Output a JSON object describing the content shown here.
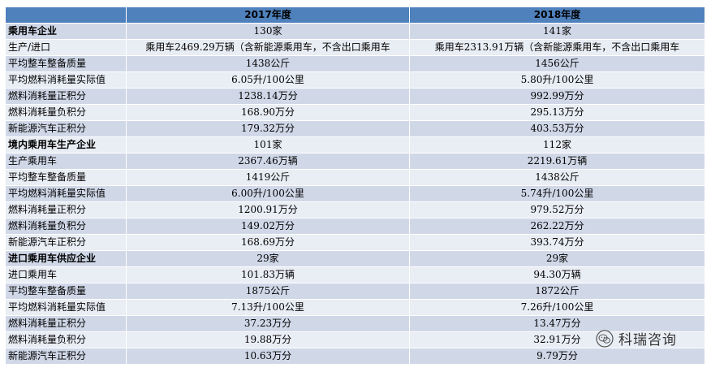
{
  "table": {
    "headers": [
      "",
      "2017年度",
      "2018年度"
    ],
    "rows": [
      {
        "label": "乘用车企业",
        "bold": true,
        "v2017": "130家",
        "v2018": "141家"
      },
      {
        "label": "生产/进口",
        "bold": false,
        "v2017": "乘用车2469.29万辆（含新能源乘用车，不含出口乘用车",
        "v2018": "乘用车2313.91万辆（含新能源乘用车，不含出口乘用车"
      },
      {
        "label": "平均整车整备质量",
        "bold": false,
        "v2017": "1438公斤",
        "v2018": "1456公斤"
      },
      {
        "label": "平均燃料消耗量实际值",
        "bold": false,
        "v2017": "6.05升/100公里",
        "v2018": "5.80升/100公里"
      },
      {
        "label": "燃料消耗量正积分",
        "bold": false,
        "v2017": "1238.14万分",
        "v2018": "992.99万分"
      },
      {
        "label": "燃料消耗量负积分",
        "bold": false,
        "v2017": "168.90万分",
        "v2018": "295.13万分"
      },
      {
        "label": "新能源汽车正积分",
        "bold": false,
        "v2017": "179.32万分",
        "v2018": "403.53万分"
      },
      {
        "label": "境内乘用车生产企业",
        "bold": true,
        "v2017": "101家",
        "v2018": "112家"
      },
      {
        "label": "生产乘用车",
        "bold": false,
        "v2017": "2367.46万辆",
        "v2018": "2219.61万辆"
      },
      {
        "label": "平均整车整备质量",
        "bold": false,
        "v2017": "1419公斤",
        "v2018": "1438公斤"
      },
      {
        "label": "平均燃料消耗量实际值",
        "bold": false,
        "v2017": "6.00升/100公里",
        "v2018": "5.74升/100公里"
      },
      {
        "label": "燃料消耗量正积分",
        "bold": false,
        "v2017": "1200.91万分",
        "v2018": "979.52万分"
      },
      {
        "label": "燃料消耗量负积分",
        "bold": false,
        "v2017": "149.02万分",
        "v2018": "262.22万分"
      },
      {
        "label": "新能源汽车正积分",
        "bold": false,
        "v2017": "168.69万分",
        "v2018": "393.74万分"
      },
      {
        "label": "进口乘用车供应企业",
        "bold": true,
        "v2017": "29家",
        "v2018": "29家"
      },
      {
        "label": "进口乘用车",
        "bold": false,
        "v2017": "101.83万辆",
        "v2018": "94.30万辆"
      },
      {
        "label": "平均整车整备质量",
        "bold": false,
        "v2017": "1875公斤",
        "v2018": "1872公斤"
      },
      {
        "label": "平均燃料消耗量实际值",
        "bold": false,
        "v2017": "7.13升/100公里",
        "v2018": "7.26升/100公里"
      },
      {
        "label": "燃料消耗量正积分",
        "bold": false,
        "v2017": "37.23万分",
        "v2018": "13.47万分"
      },
      {
        "label": "燃料消耗量负积分",
        "bold": false,
        "v2017": "19.88万分",
        "v2018": "32.91万分"
      },
      {
        "label": "新能源汽车正积分",
        "bold": false,
        "v2017": "10.63万分",
        "v2018": "9.79万分"
      }
    ]
  },
  "watermark": {
    "text": "科瑞咨询",
    "icon": "wechat-icon"
  },
  "colors": {
    "header": "#4f81bd",
    "row_odd": "#d0d8e8",
    "row_even": "#e9edf4"
  }
}
